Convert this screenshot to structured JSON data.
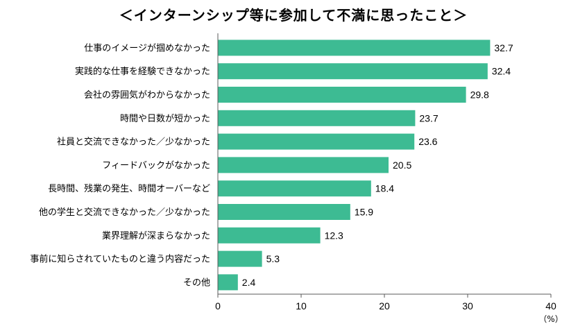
{
  "chart_data": {
    "type": "bar",
    "orientation": "horizontal",
    "title": "＜インターンシップ等に参加して不満に思ったこと＞",
    "categories": [
      "仕事のイメージが掴めなかった",
      "実践的な仕事を経験できなかった",
      "会社の雰囲気がわからなかった",
      "時間や日数が短かった",
      "社員と交流できなかった／少なかった",
      "フィードバックがなかった",
      "長時間、残業の発生、時間オーバーなど",
      "他の学生と交流できなかった／少なかった",
      "業界理解が深まらなかった",
      "事前に知らされていたものと違う内容だった",
      "その他"
    ],
    "values": [
      32.7,
      32.4,
      29.8,
      23.7,
      23.6,
      20.5,
      18.4,
      15.9,
      12.3,
      5.3,
      2.4
    ],
    "value_labels": [
      "32.7",
      "32.4",
      "29.8",
      "23.7",
      "23.6",
      "20.5",
      "18.4",
      "15.9",
      "12.3",
      "5.3",
      "2.4"
    ],
    "xlim": [
      0,
      40
    ],
    "xticks": [
      "0",
      "10",
      "20",
      "30",
      "40"
    ],
    "xunit": "（%）",
    "bar_color": "#3dbb93",
    "grid": false,
    "legend": "none"
  }
}
